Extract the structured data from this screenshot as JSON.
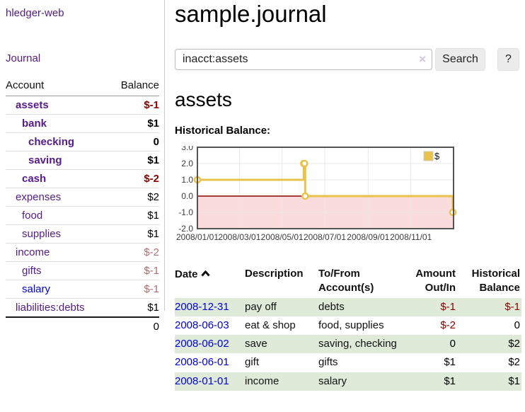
{
  "sidebar": {
    "app_title": "hledger-web",
    "journal_link": "Journal",
    "accounts": {
      "headers": {
        "account": "Account",
        "balance": "Balance"
      },
      "rows": [
        {
          "name": "assets",
          "balance": "$-1",
          "level": 0,
          "bold": true,
          "link": "purple",
          "tone": "negative"
        },
        {
          "name": "bank",
          "balance": "$1",
          "level": 1,
          "bold": true,
          "link": "purple",
          "tone": "positive"
        },
        {
          "name": "checking",
          "balance": "0",
          "level": 2,
          "bold": true,
          "link": "purple",
          "tone": "positive"
        },
        {
          "name": "saving",
          "balance": "$1",
          "level": 2,
          "bold": true,
          "link": "purple",
          "tone": "positive"
        },
        {
          "name": "cash",
          "balance": "$-2",
          "level": 1,
          "bold": true,
          "link": "purple",
          "tone": "negative"
        },
        {
          "name": "expenses",
          "balance": "$2",
          "level": 0,
          "bold": false,
          "link": "purple",
          "tone": "positive"
        },
        {
          "name": "food",
          "balance": "$1",
          "level": 1,
          "bold": false,
          "link": "purple",
          "tone": "positive"
        },
        {
          "name": "supplies",
          "balance": "$1",
          "level": 1,
          "bold": false,
          "link": "purple",
          "tone": "positive"
        },
        {
          "name": "income",
          "balance": "$-2",
          "level": 0,
          "bold": false,
          "link": "purple",
          "tone": "negative-soft"
        },
        {
          "name": "gifts",
          "balance": "$-1",
          "level": 1,
          "bold": false,
          "link": "purple",
          "tone": "negative-soft"
        },
        {
          "name": "salary",
          "balance": "$-1",
          "level": 1,
          "bold": false,
          "link": "blue",
          "tone": "negative-soft"
        },
        {
          "name": "liabilities:debts",
          "balance": "$1",
          "level": 0,
          "bold": false,
          "link": "purple",
          "tone": "positive"
        }
      ],
      "total": "0"
    }
  },
  "main": {
    "title": "sample.journal",
    "search": {
      "value": "inacct:assets",
      "clear_icon": "×",
      "search_button": "Search",
      "help_button": "?"
    },
    "account_heading": "assets",
    "chart_label": "Historical Balance:",
    "register": {
      "headers": {
        "date": "Date",
        "description": "Description",
        "tofrom": "To/From Account(s)",
        "amount": "Amount Out/In",
        "balance": "Historical Balance"
      },
      "rows": [
        {
          "date": "2008-12-31",
          "description": "pay off",
          "accounts": "debts",
          "amount": "$-1",
          "amount_tone": "negative",
          "balance": "$-1",
          "balance_tone": "negative"
        },
        {
          "date": "2008-06-03",
          "description": "eat & shop",
          "accounts": "food, supplies",
          "amount": "$-2",
          "amount_tone": "negative",
          "balance": "0",
          "balance_tone": "positive"
        },
        {
          "date": "2008-06-02",
          "description": "save",
          "accounts": "saving, checking",
          "amount": "0",
          "amount_tone": "positive",
          "balance": "$2",
          "balance_tone": "positive"
        },
        {
          "date": "2008-06-01",
          "description": "gift",
          "accounts": "gifts",
          "amount": "$1",
          "amount_tone": "positive",
          "balance": "$2",
          "balance_tone": "positive"
        },
        {
          "date": "2008-01-01",
          "description": "income",
          "accounts": "salary",
          "amount": "$1",
          "amount_tone": "positive",
          "balance": "$1",
          "balance_tone": "positive"
        }
      ]
    }
  },
  "chart_data": {
    "type": "line",
    "style": "step",
    "title": "Historical Balance",
    "legend": "$",
    "legend_position": "top-right",
    "grid": true,
    "x_range": [
      "2008/01/01",
      "2009/01/01"
    ],
    "ylim": [
      -2,
      3
    ],
    "yticks": [
      3,
      2,
      1,
      0,
      -1,
      -2
    ],
    "xticks": [
      "2008/01/01",
      "2008/03/01",
      "2008/05/01",
      "2008/07/01",
      "2008/09/01",
      "2008/11/01"
    ],
    "points": [
      {
        "x": "2008/01/01",
        "y": 1
      },
      {
        "x": "2008/06/01",
        "y": 2
      },
      {
        "x": "2008/06/02",
        "y": 2
      },
      {
        "x": "2008/06/03",
        "y": 0
      },
      {
        "x": "2008/12/31",
        "y": -1
      }
    ],
    "colors": {
      "series": "#e8c24a",
      "negative_region": "#fbdcdc",
      "zero_line": "#8b0000",
      "grid": "#e8e8e8",
      "border": "#545454"
    }
  }
}
